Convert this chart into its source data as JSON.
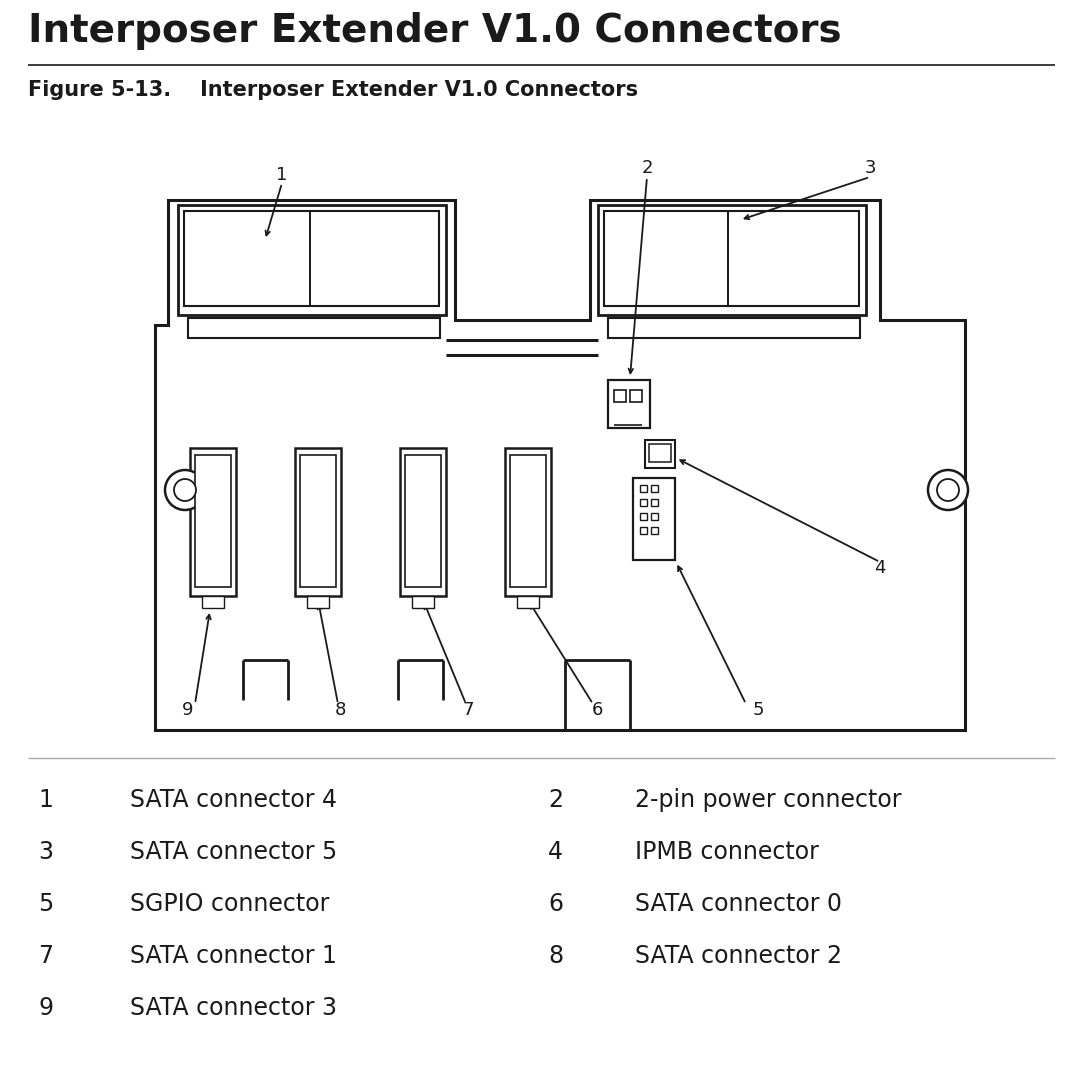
{
  "title": "Interposer Extender V1.0 Connectors",
  "figure_caption": "Figure 5-13.    Interposer Extender V1.0 Connectors",
  "legend_left": [
    [
      "1",
      "SATA connector 4"
    ],
    [
      "3",
      "SATA connector 5"
    ],
    [
      "5",
      "SGPIO connector"
    ],
    [
      "7",
      "SATA connector 1"
    ],
    [
      "9",
      "SATA connector 3"
    ]
  ],
  "legend_right": [
    [
      "2",
      "2-pin power connector"
    ],
    [
      "4",
      "IPMB connector"
    ],
    [
      "6",
      "SATA connector 0"
    ],
    [
      "8",
      "SATA connector 2"
    ]
  ],
  "bg_color": "#ffffff",
  "line_color": "#1a1a1a"
}
